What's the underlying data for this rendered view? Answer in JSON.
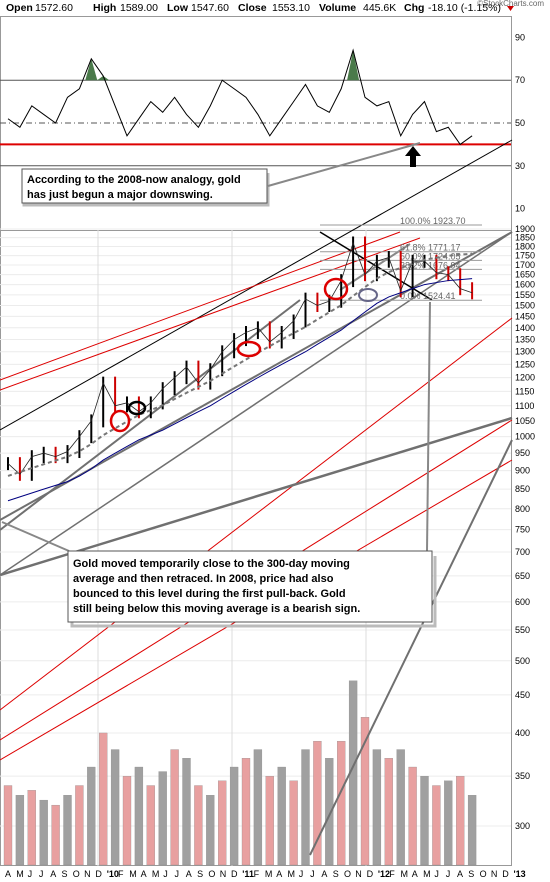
{
  "header": {
    "open_label": "Open",
    "open_value": "1572.60",
    "high_label": "High",
    "high_value": "1589.00",
    "low_label": "Low",
    "low_value": "1547.60",
    "close_label": "Close",
    "close_value": "1553.10",
    "volume_label": "Volume",
    "volume_value": "445.6K",
    "chg_label": "Chg",
    "chg_value": "-18.10 (-1.15%)",
    "chg_arrow": "down-arrow-icon",
    "brand": "©StockCharts.com"
  },
  "colors": {
    "price_up": "#000000",
    "price_down": "#cc0000",
    "ma_300": "#000080",
    "trend_red": "#dd0000",
    "trend_black": "#000000",
    "trend_gray": "#707070",
    "rsi_fill": "#4a7a4a",
    "vol_red": "#e8a0a0",
    "vol_gray": "#a0a0a0",
    "annotation_circle_red": "#dd0000",
    "annotation_circle_black": "#000000"
  },
  "annotations": {
    "rsi_note": [
      "According to the 2008-now analogy, gold",
      "has just begun a major downswing."
    ],
    "price_note": [
      "Gold moved temporarily close to the 300-day moving",
      "average and then retraced. In 2008, price had also",
      "bounced to this level during the first pull-back. Gold",
      "still being below this moving average is a bearish sign."
    ]
  },
  "chart_data": [
    {
      "type": "line",
      "panel": "indicator",
      "y_ticks": [
        "90",
        "70",
        "50",
        "30",
        "10"
      ],
      "ylim": [
        0,
        100
      ],
      "reference_levels": [
        70,
        50,
        30
      ],
      "highlight_level": 40,
      "x": [
        "2009-03",
        "2009-04",
        "2009-05",
        "2009-06",
        "2009-07",
        "2009-08",
        "2009-09",
        "2009-10",
        "2009-11",
        "2009-12",
        "2010-01",
        "2010-02",
        "2010-03",
        "2010-04",
        "2010-05",
        "2010-06",
        "2010-07",
        "2010-08",
        "2010-09",
        "2010-10",
        "2010-11",
        "2010-12",
        "2011-01",
        "2011-02",
        "2011-03",
        "2011-04",
        "2011-05",
        "2011-06",
        "2011-07",
        "2011-08",
        "2011-09",
        "2011-10",
        "2011-11",
        "2011-12",
        "2012-01",
        "2012-02",
        "2012-03",
        "2012-04",
        "2012-05",
        "2012-06"
      ],
      "values": [
        52,
        48,
        58,
        54,
        50,
        62,
        66,
        80,
        72,
        58,
        44,
        52,
        60,
        55,
        62,
        54,
        48,
        58,
        70,
        66,
        62,
        54,
        44,
        52,
        60,
        68,
        58,
        55,
        66,
        84,
        62,
        58,
        60,
        44,
        54,
        60,
        46,
        48,
        40,
        44
      ]
    },
    {
      "type": "line",
      "panel": "price",
      "y_ticks": [
        "1900",
        "1850",
        "1800",
        "1750",
        "1700",
        "1650",
        "1600",
        "1550",
        "1500",
        "1450",
        "1400",
        "1350",
        "1300",
        "1250",
        "1200",
        "1150",
        "1100",
        "1050",
        "1000",
        "950",
        "900",
        "850",
        "800",
        "750",
        "700",
        "650",
        "600",
        "550",
        "500",
        "450",
        "400",
        "350",
        "300"
      ],
      "x_ticks": [
        "A",
        "M",
        "J",
        "J",
        "A",
        "S",
        "O",
        "N",
        "D",
        "'10",
        "F",
        "M",
        "A",
        "M",
        "J",
        "J",
        "A",
        "S",
        "O",
        "N",
        "D",
        "'11",
        "F",
        "M",
        "A",
        "M",
        "J",
        "J",
        "A",
        "S",
        "O",
        "N",
        "D",
        "'12",
        "F",
        "M",
        "A",
        "M",
        "J",
        "J",
        "A",
        "S",
        "O",
        "N",
        "D",
        "'13"
      ],
      "fibonacci": [
        {
          "label": "100.0%",
          "value": 1923.7
        },
        {
          "label": "61.8%",
          "value": 1771.17
        },
        {
          "label": "50.0%",
          "value": 1724.05
        },
        {
          "label": "38.2%",
          "value": 1676.94
        },
        {
          "label": "0.0%",
          "value": 1524.41
        }
      ],
      "x": [
        "2009-03",
        "2009-04",
        "2009-05",
        "2009-06",
        "2009-07",
        "2009-08",
        "2009-09",
        "2009-10",
        "2009-11",
        "2009-12",
        "2010-01",
        "2010-02",
        "2010-03",
        "2010-04",
        "2010-05",
        "2010-06",
        "2010-07",
        "2010-08",
        "2010-09",
        "2010-10",
        "2010-11",
        "2010-12",
        "2011-01",
        "2011-02",
        "2011-03",
        "2011-04",
        "2011-05",
        "2011-06",
        "2011-07",
        "2011-08",
        "2011-09",
        "2011-10",
        "2011-11",
        "2011-12",
        "2012-01",
        "2012-02",
        "2012-03",
        "2012-04",
        "2012-05",
        "2012-06"
      ],
      "series": [
        {
          "values": [
            920,
            890,
            940,
            950,
            940,
            955,
            1000,
            1050,
            1180,
            1100,
            1110,
            1080,
            1110,
            1160,
            1200,
            1240,
            1180,
            1230,
            1300,
            1350,
            1380,
            1400,
            1340,
            1380,
            1430,
            1530,
            1500,
            1520,
            1620,
            1820,
            1650,
            1720,
            1740,
            1570,
            1720,
            1720,
            1660,
            1650,
            1580,
            1560
          ]
        },
        {
          "values": [
            820,
            830,
            840,
            850,
            860,
            870,
            885,
            905,
            930,
            950,
            970,
            990,
            1005,
            1020,
            1040,
            1060,
            1080,
            1100,
            1125,
            1150,
            1175,
            1200,
            1225,
            1250,
            1275,
            1300,
            1330,
            1360,
            1390,
            1430,
            1470,
            1510,
            1540,
            1560,
            1580,
            1600,
            1610,
            1620,
            1625,
            1630
          ]
        }
      ]
    },
    {
      "type": "bar",
      "panel": "volume",
      "y_ticks": [
        "500",
        "450",
        "400",
        "350",
        "300"
      ],
      "categories": [
        "2009-03",
        "2009-04",
        "2009-05",
        "2009-06",
        "2009-07",
        "2009-08",
        "2009-09",
        "2009-10",
        "2009-11",
        "2009-12",
        "2010-01",
        "2010-02",
        "2010-03",
        "2010-04",
        "2010-05",
        "2010-06",
        "2010-07",
        "2010-08",
        "2010-09",
        "2010-10",
        "2010-11",
        "2010-12",
        "2011-01",
        "2011-02",
        "2011-03",
        "2011-04",
        "2011-05",
        "2011-06",
        "2011-07",
        "2011-08",
        "2011-09",
        "2011-10",
        "2011-11",
        "2011-12",
        "2012-01",
        "2012-02",
        "2012-03",
        "2012-04",
        "2012-05",
        "2012-06"
      ],
      "values": [
        340,
        330,
        335,
        325,
        320,
        330,
        340,
        360,
        400,
        380,
        350,
        360,
        340,
        355,
        380,
        370,
        340,
        330,
        345,
        360,
        370,
        380,
        350,
        360,
        345,
        380,
        390,
        370,
        390,
        470,
        420,
        380,
        370,
        380,
        360,
        350,
        340,
        345,
        350,
        330
      ]
    }
  ]
}
